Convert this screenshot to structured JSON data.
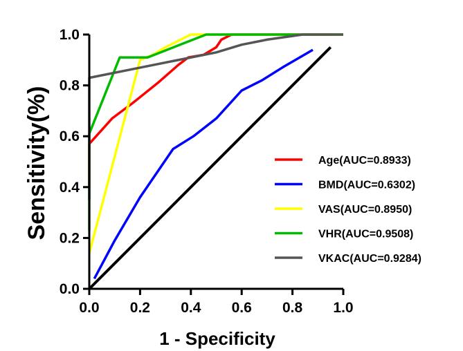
{
  "chart_data": {
    "type": "line",
    "xlabel": "1 - Specificity",
    "ylabel": "Sensitivity(%)",
    "xlim": [
      0.0,
      1.0
    ],
    "ylim": [
      0.0,
      1.0
    ],
    "x_ticks": [
      "0.0",
      "0.2",
      "0.4",
      "0.6",
      "0.8",
      "1.0"
    ],
    "y_ticks": [
      "0.0",
      "0.2",
      "0.4",
      "0.6",
      "0.8",
      "1.0"
    ],
    "grid": false,
    "legend_position": "right",
    "reference_line": {
      "x": [
        0.0,
        0.95
      ],
      "y": [
        0.0,
        0.95
      ],
      "color": "#000000"
    },
    "series": [
      {
        "name": "Age(AUC=0.8933)",
        "color": "#ff0000",
        "x": [
          0.0,
          0.0,
          0.09,
          0.17,
          0.27,
          0.35,
          0.39,
          0.45,
          0.5,
          0.52,
          0.56,
          0.6,
          0.8,
          0.96
        ],
        "y": [
          0.4,
          0.57,
          0.67,
          0.73,
          0.81,
          0.88,
          0.91,
          0.92,
          0.95,
          0.98,
          1.0,
          1.0,
          1.0,
          1.0
        ]
      },
      {
        "name": "BMD(AUC=0.6302)",
        "color": "#0000ff",
        "x": [
          0.02,
          0.1,
          0.2,
          0.33,
          0.41,
          0.5,
          0.6,
          0.68,
          0.76,
          0.88
        ],
        "y": [
          0.04,
          0.19,
          0.36,
          0.55,
          0.6,
          0.67,
          0.78,
          0.82,
          0.87,
          0.94
        ]
      },
      {
        "name": "VAS(AUC=0.8950)",
        "color": "#ffff00",
        "x": [
          0.0,
          0.2,
          0.25,
          0.3,
          0.4,
          0.6,
          1.0
        ],
        "y": [
          0.14,
          0.9,
          0.92,
          0.95,
          1.0,
          1.0,
          1.0
        ]
      },
      {
        "name": "VHR(AUC=0.9508)",
        "color": "#00bb00",
        "x": [
          0.0,
          0.0,
          0.12,
          0.23,
          0.46,
          0.6,
          1.0
        ],
        "y": [
          0.23,
          0.61,
          0.91,
          0.91,
          1.0,
          1.0,
          1.0
        ]
      },
      {
        "name": "VKAC(AUC=0.9284)",
        "color": "#555555",
        "x": [
          0.0,
          0.0,
          0.25,
          0.5,
          0.6,
          0.7,
          0.84,
          1.0
        ],
        "y": [
          0.35,
          0.83,
          0.88,
          0.93,
          0.96,
          0.98,
          1.0,
          1.0
        ]
      }
    ]
  }
}
